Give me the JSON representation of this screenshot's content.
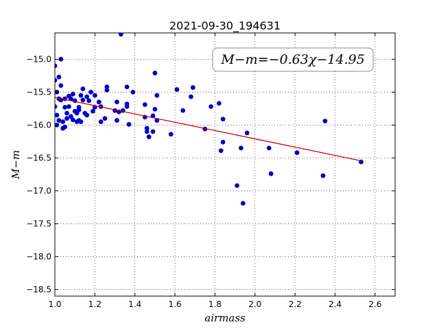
{
  "chart_data": {
    "type": "scatter",
    "title": "2021-09-30_194631",
    "xlabel": "airmass",
    "ylabel": "M−m",
    "xlim": [
      1.0,
      2.7
    ],
    "ylim": [
      -18.6,
      -14.6
    ],
    "y_inverted": true,
    "grid": true,
    "grid_style": "dotted",
    "xticks": [
      1.0,
      1.2,
      1.4,
      1.6,
      1.8,
      2.0,
      2.2,
      2.4,
      2.6
    ],
    "xtick_labels": [
      "1.0",
      "1.2",
      "1.4",
      "1.6",
      "1.8",
      "2.0",
      "2.2",
      "2.4",
      "2.6"
    ],
    "yticks": [
      -15.0,
      -15.5,
      -16.0,
      -16.5,
      -17.0,
      -17.5,
      -18.0,
      -18.5
    ],
    "ytick_labels": [
      "−15.0",
      "−15.5",
      "−16.0",
      "−16.5",
      "−17.0",
      "−17.5",
      "−18.0",
      "−18.5"
    ],
    "annotation": "M−m=−0.63χ−14.95",
    "colors": {
      "points": "#0000cc",
      "fit": "#cc0000"
    },
    "series": [
      {
        "kind": "points",
        "x": [
          1.0,
          1.0,
          1.0,
          1.01,
          1.01,
          1.01,
          1.02,
          1.02,
          1.02,
          1.03,
          1.03,
          1.03,
          1.04,
          1.04,
          1.05,
          1.05,
          1.05,
          1.06,
          1.06,
          1.07,
          1.07,
          1.08,
          1.08,
          1.09,
          1.09,
          1.1,
          1.1,
          1.11,
          1.11,
          1.12,
          1.12,
          1.12,
          1.13,
          1.13,
          1.14,
          1.14,
          1.15,
          1.16,
          1.16,
          1.17,
          1.18,
          1.19,
          1.2,
          1.2,
          1.22,
          1.23,
          1.23,
          1.25,
          1.26,
          1.26,
          1.3,
          1.31,
          1.31,
          1.32,
          1.33,
          1.34,
          1.36,
          1.36,
          1.36,
          1.37,
          1.39,
          1.45,
          1.45,
          1.46,
          1.46,
          1.47,
          1.49,
          1.49,
          1.5,
          1.5,
          1.51,
          1.51,
          1.58,
          1.61,
          1.64,
          1.68,
          1.69,
          1.75,
          1.78,
          1.82,
          1.83,
          1.84,
          1.84,
          1.91,
          1.93,
          1.94,
          1.96,
          2.07,
          2.08,
          2.21,
          2.34,
          2.35,
          2.53
        ],
        "y": [
          -15.1,
          -15.32,
          -15.72,
          -15.5,
          -15.85,
          -16.0,
          -15.27,
          -15.6,
          -15.93,
          -15.0,
          -15.4,
          -15.62,
          -15.95,
          -16.05,
          -15.73,
          -16.03,
          -15.6,
          -15.82,
          -15.9,
          -15.56,
          -15.72,
          -15.6,
          -15.87,
          -15.53,
          -15.92,
          -15.63,
          -15.79,
          -15.82,
          -15.95,
          -15.73,
          -15.77,
          -15.93,
          -15.55,
          -15.95,
          -15.45,
          -15.62,
          -15.82,
          -15.57,
          -15.85,
          -15.63,
          -15.5,
          -15.79,
          -15.55,
          -15.73,
          -15.65,
          -15.72,
          -15.95,
          -15.9,
          -15.42,
          -15.47,
          -15.78,
          -15.65,
          -15.93,
          -15.8,
          -14.62,
          -15.78,
          -15.42,
          -15.68,
          -15.72,
          -15.99,
          -15.5,
          -15.69,
          -15.88,
          -16.05,
          -16.1,
          -16.18,
          -15.86,
          -16.1,
          -15.21,
          -15.76,
          -15.55,
          -15.93,
          -16.14,
          -15.46,
          -15.78,
          -15.57,
          -15.43,
          -16.06,
          -15.72,
          -15.67,
          -16.39,
          -15.91,
          -16.26,
          -16.92,
          -16.35,
          -17.19,
          -16.12,
          -16.35,
          -16.74,
          -16.42,
          -16.77,
          -15.94,
          -16.56
        ]
      },
      {
        "kind": "fit-line",
        "name": "M−m=−0.63χ−14.95",
        "slope": -0.63,
        "intercept": -14.95,
        "x": [
          1.0,
          2.53
        ]
      }
    ]
  }
}
